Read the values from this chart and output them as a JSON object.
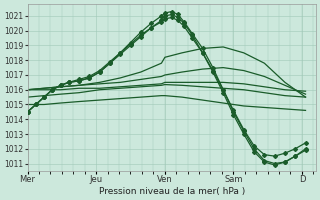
{
  "bg_color": "#cce8dc",
  "grid_color": "#a0c8b8",
  "line_color": "#1a5c2a",
  "marker_color": "#1a5c2a",
  "xlabel_text": "Pression niveau de la mer( hPa )",
  "ylim": [
    1010.5,
    1021.8
  ],
  "yticks": [
    1011,
    1012,
    1013,
    1014,
    1015,
    1016,
    1017,
    1018,
    1019,
    1020,
    1021
  ],
  "day_labels": [
    "Mer",
    "Jeu",
    "Ven",
    "Sam",
    "D"
  ],
  "day_positions": [
    0,
    0.333,
    0.667,
    1.0,
    1.333
  ],
  "series": [
    {
      "x": [
        0.0,
        0.04,
        0.08,
        0.12,
        0.16,
        0.2,
        0.25,
        0.3,
        0.35,
        0.4,
        0.45,
        0.5,
        0.55,
        0.6,
        0.65,
        0.667,
        0.7,
        0.73,
        0.76,
        0.8,
        0.85,
        0.9,
        0.95,
        1.0,
        1.05,
        1.1,
        1.15,
        1.2,
        1.25,
        1.3,
        1.35
      ],
      "y": [
        1014.5,
        1015.0,
        1015.5,
        1016.0,
        1016.3,
        1016.5,
        1016.6,
        1016.8,
        1017.2,
        1017.8,
        1018.5,
        1019.2,
        1019.9,
        1020.5,
        1021.0,
        1021.2,
        1021.3,
        1021.1,
        1020.6,
        1019.8,
        1018.8,
        1017.5,
        1016.0,
        1014.5,
        1013.2,
        1012.0,
        1011.2,
        1011.0,
        1011.1,
        1011.5,
        1011.9
      ],
      "marker": true
    },
    {
      "x": [
        0.0,
        0.04,
        0.08,
        0.12,
        0.16,
        0.2,
        0.25,
        0.3,
        0.35,
        0.4,
        0.45,
        0.5,
        0.55,
        0.6,
        0.65,
        0.667,
        0.7,
        0.73,
        0.76,
        0.8,
        0.85,
        0.9,
        0.95,
        1.0,
        1.05,
        1.1,
        1.15,
        1.2,
        1.25,
        1.3,
        1.35
      ],
      "y": [
        1014.5,
        1015.0,
        1015.5,
        1016.0,
        1016.3,
        1016.5,
        1016.6,
        1016.8,
        1017.2,
        1017.8,
        1018.4,
        1019.0,
        1019.6,
        1020.2,
        1020.7,
        1021.0,
        1021.1,
        1020.9,
        1020.5,
        1019.7,
        1018.5,
        1017.2,
        1015.8,
        1014.3,
        1013.0,
        1011.8,
        1011.1,
        1010.9,
        1011.1,
        1011.5,
        1012.0
      ],
      "marker": true
    },
    {
      "x": [
        0.0,
        0.04,
        0.08,
        0.12,
        0.16,
        0.2,
        0.25,
        0.3,
        0.35,
        0.4,
        0.45,
        0.5,
        0.55,
        0.6,
        0.65,
        0.667,
        0.7,
        0.73,
        0.76,
        0.8,
        0.85,
        0.9,
        0.95,
        1.0,
        1.05,
        1.1,
        1.15,
        1.2,
        1.25,
        1.3,
        1.35
      ],
      "y": [
        1014.5,
        1015.0,
        1015.5,
        1016.0,
        1016.3,
        1016.5,
        1016.7,
        1016.9,
        1017.3,
        1017.9,
        1018.5,
        1019.1,
        1019.7,
        1020.2,
        1020.6,
        1020.8,
        1020.9,
        1020.7,
        1020.3,
        1019.5,
        1018.5,
        1017.3,
        1016.0,
        1014.6,
        1013.3,
        1012.2,
        1011.6,
        1011.5,
        1011.7,
        1012.0,
        1012.4
      ],
      "marker": true
    },
    {
      "x": [
        0.0,
        0.08,
        0.16,
        0.25,
        0.35,
        0.45,
        0.55,
        0.65,
        0.667,
        0.75,
        0.85,
        0.95,
        1.05,
        1.15,
        1.25,
        1.35
      ],
      "y": [
        1016.0,
        1016.1,
        1016.2,
        1016.3,
        1016.5,
        1016.8,
        1017.2,
        1017.8,
        1018.2,
        1018.5,
        1018.8,
        1018.9,
        1018.5,
        1017.8,
        1016.5,
        1015.5
      ],
      "marker": false
    },
    {
      "x": [
        0.0,
        0.08,
        0.16,
        0.25,
        0.35,
        0.45,
        0.55,
        0.65,
        0.667,
        0.75,
        0.85,
        0.95,
        1.05,
        1.15,
        1.25,
        1.35
      ],
      "y": [
        1016.0,
        1016.1,
        1016.2,
        1016.3,
        1016.4,
        1016.5,
        1016.7,
        1016.9,
        1017.0,
        1017.2,
        1017.4,
        1017.5,
        1017.3,
        1016.9,
        1016.3,
        1015.7
      ],
      "marker": false
    },
    {
      "x": [
        0.0,
        0.08,
        0.16,
        0.25,
        0.35,
        0.45,
        0.55,
        0.65,
        0.667,
        0.75,
        0.85,
        0.95,
        1.05,
        1.15,
        1.25,
        1.35
      ],
      "y": [
        1016.0,
        1016.0,
        1016.0,
        1016.1,
        1016.1,
        1016.2,
        1016.3,
        1016.4,
        1016.5,
        1016.5,
        1016.5,
        1016.5,
        1016.4,
        1016.2,
        1016.0,
        1015.9
      ],
      "marker": false
    },
    {
      "x": [
        0.0,
        0.08,
        0.16,
        0.25,
        0.35,
        0.45,
        0.55,
        0.65,
        0.667,
        0.75,
        0.85,
        0.95,
        1.05,
        1.15,
        1.25,
        1.35
      ],
      "y": [
        1015.5,
        1015.6,
        1015.7,
        1015.8,
        1016.0,
        1016.1,
        1016.2,
        1016.3,
        1016.35,
        1016.3,
        1016.2,
        1016.1,
        1016.0,
        1015.8,
        1015.6,
        1015.5
      ],
      "marker": false
    },
    {
      "x": [
        0.0,
        0.08,
        0.16,
        0.25,
        0.35,
        0.45,
        0.55,
        0.65,
        0.667,
        0.75,
        0.85,
        0.95,
        1.05,
        1.15,
        1.25,
        1.35
      ],
      "y": [
        1015.0,
        1015.0,
        1015.1,
        1015.2,
        1015.3,
        1015.4,
        1015.5,
        1015.6,
        1015.6,
        1015.5,
        1015.3,
        1015.1,
        1014.9,
        1014.8,
        1014.7,
        1014.6
      ],
      "marker": false
    }
  ],
  "xlim": [
    0.0,
    1.4
  ]
}
